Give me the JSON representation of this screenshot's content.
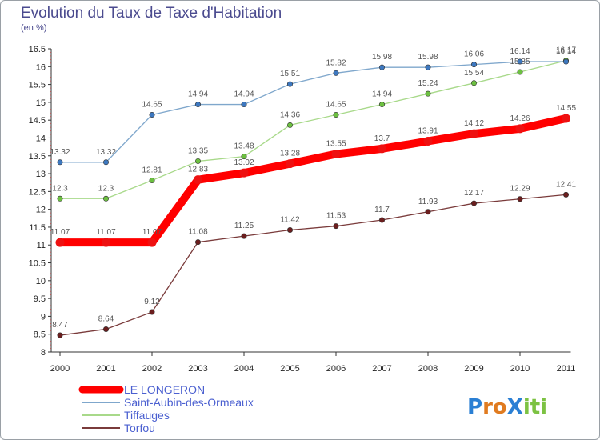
{
  "chart_data": {
    "type": "line",
    "title": "Evolution du Taux de Taxe d'Habitation",
    "subtitle": "(en %)",
    "ylim": [
      8,
      16.5
    ],
    "yticks": [
      "8",
      "8.5",
      "9",
      "9.5",
      "10",
      "10.5",
      "11",
      "11.5",
      "12",
      "12.5",
      "13",
      "13.5",
      "14",
      "14.5",
      "15",
      "15.5",
      "16",
      "16.5"
    ],
    "categories": [
      "2000",
      "2001",
      "2002",
      "2003",
      "2004",
      "2005",
      "2006",
      "2007",
      "2008",
      "2009",
      "2010",
      "2011"
    ],
    "series": [
      {
        "name": "LE LONGERON",
        "values": [
          11.07,
          11.07,
          11.07,
          12.83,
          13.02,
          13.28,
          13.55,
          13.7,
          13.91,
          14.12,
          14.26,
          14.55
        ],
        "labels": [
          "11.07",
          "11.07",
          "11.07",
          "12.83",
          "13.02",
          "13.28",
          "13.55",
          "13.7",
          "13.91",
          "14.12",
          "14.26",
          "14.55"
        ],
        "color": "#ff0000",
        "marker": "#ee1111"
      },
      {
        "name": "Saint-Aubin-des-Ormeaux",
        "values": [
          13.32,
          13.32,
          14.65,
          14.94,
          14.94,
          15.51,
          15.82,
          15.98,
          15.98,
          16.06,
          16.14,
          16.14
        ],
        "labels": [
          "13.32",
          "13.32",
          "14.65",
          "14.94",
          "14.94",
          "15.51",
          "15.82",
          "15.98",
          "15.98",
          "16.06",
          "16.14",
          "16.14"
        ],
        "color": "#7fa7cc",
        "marker": "#3d78c0"
      },
      {
        "name": "Tiffauges",
        "values": [
          12.3,
          12.3,
          12.81,
          13.35,
          13.48,
          14.36,
          14.65,
          14.94,
          15.24,
          15.54,
          15.85,
          16.17
        ],
        "labels": [
          "12.3",
          "12.3",
          "12.81",
          "13.35",
          "13.48",
          "14.36",
          "14.65",
          "14.94",
          "15.24",
          "15.54",
          "15.85",
          "16.17"
        ],
        "color": "#a8d98a",
        "marker": "#6cc040"
      },
      {
        "name": "Torfou",
        "values": [
          8.47,
          8.64,
          9.12,
          11.08,
          11.25,
          11.42,
          11.53,
          11.7,
          11.93,
          12.17,
          12.29,
          12.41
        ],
        "labels": [
          "8.47",
          "8.64",
          "9.12",
          "11.08",
          "11.25",
          "11.42",
          "11.53",
          "11.7",
          "11.93",
          "12.17",
          "12.29",
          "12.41"
        ],
        "color": "#7a3b3b",
        "marker": "#6b1e1e"
      }
    ],
    "legend_position": "bottom-left",
    "grid": false
  },
  "logo": {
    "text": "ProXiti",
    "letters": [
      "P",
      "r",
      "o",
      "X",
      "i",
      "t",
      "i"
    ],
    "colors": [
      "#2a7fd4",
      "#e07b20",
      "#e07b20",
      "#2a7fd4",
      "#7cc242",
      "#7cc242",
      "#7cc242"
    ]
  }
}
